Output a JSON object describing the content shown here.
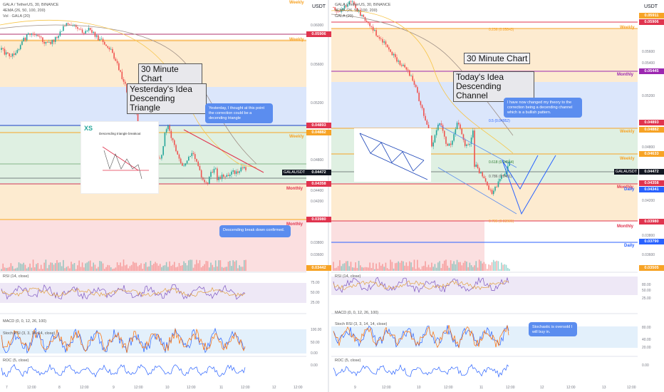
{
  "left_panel": {
    "header": {
      "symbol": "GALA / TetherUS, 30, BINANCE",
      "ema": "4EMA (26, 50, 100, 200)",
      "vol": "Vol · GALA (20)"
    },
    "currency": "USDT",
    "title_box": "30 Minute Chart",
    "idea_box": "Yesterday's Idea\nDescending Triangle",
    "note_1": "Yesterday, I thought at this point the correction could be a decending triangle",
    "note_2": "Descending break down confirmed.",
    "inset_logo": "XS",
    "inset_title": "Descending triangle breakout",
    "level_labels": [
      "Weekly",
      "Weekly",
      "Weekly",
      "Monthly",
      "Monthly"
    ],
    "price_tags": [
      {
        "text": "0.05906",
        "color": "#e0344e"
      },
      {
        "text": "0.04893",
        "color": "#e0344e"
      },
      {
        "text": "0.04882",
        "color": "#f7a325"
      },
      {
        "text": "0.04472",
        "color": "#131722"
      },
      {
        "text": "0.04358",
        "color": "#e0344e"
      },
      {
        "text": "0.03980",
        "color": "#e0344e"
      },
      {
        "text": "0.03442",
        "color": "#f7a325"
      }
    ],
    "ticker_tag": "GALAUSDT",
    "axis_prices": [
      "0.06000",
      "0.05600",
      "0.05200",
      "0.04800",
      "0.04400",
      "0.04200",
      "0.03800",
      "0.03600"
    ],
    "rsi": {
      "label": "RSI (14, close)",
      "ticks": [
        "75.00",
        "50.00",
        "25.00"
      ]
    },
    "macd": {
      "label": "MACD (0, 0, 12, 26, 100)",
      "stoch": "Stoch RSI (3, 3, 14, 14, close)",
      "ticks": [
        "100.00",
        "50.00",
        "0.00"
      ]
    },
    "roc": {
      "label": "ROC (5, close)",
      "ticks": [
        "0.00"
      ]
    },
    "x_axis": [
      "7",
      "12:00",
      "8",
      "12:00",
      "9",
      "12:00",
      "10",
      "12:00",
      "11",
      "12:00",
      "12",
      "12:00"
    ]
  },
  "right_panel": {
    "header": {
      "symbol": "GALA / TetherUS, 30, BINANCE",
      "ema": "4EMA (26, 50, 100, 200)",
      "vol": "GALA (20)"
    },
    "currency": "USDT",
    "title_box": "30 Minute Chart",
    "idea_box": "Today's Idea\nDescending Channel",
    "note_1": "I have now changed my theory to the correction being a decending channel which is a bullish pattern.",
    "note_2": "Stochastic is oversold I will buy in.",
    "fib_labels": [
      "0.236 (0.05843)",
      "0.5 (0.04952)",
      "0.618 (0.04554)",
      "0.786 (0.0401)",
      "0.786 (0.03981)"
    ],
    "level_labels": [
      "Weekly",
      "Monthly",
      "Weekly",
      "Weekly",
      "Monthly",
      "Daily",
      "Monthly",
      "Daily"
    ],
    "price_tags": [
      {
        "text": "0.05911",
        "color": "#f7a325"
      },
      {
        "text": "0.05906",
        "color": "#e0344e"
      },
      {
        "text": "0.05445",
        "color": "#9c27b0"
      },
      {
        "text": "0.04893",
        "color": "#e0344e"
      },
      {
        "text": "0.04882",
        "color": "#f7a325"
      },
      {
        "text": "0.04633",
        "color": "#f7a325"
      },
      {
        "text": "0.04472",
        "color": "#131722"
      },
      {
        "text": "0.04358",
        "color": "#e0344e"
      },
      {
        "text": "0.04341",
        "color": "#2962ff"
      },
      {
        "text": "0.03980",
        "color": "#e0344e"
      },
      {
        "text": "0.03790",
        "color": "#2962ff"
      },
      {
        "text": "0.03505",
        "color": "#f7a325"
      }
    ],
    "ticker_tag": "GALAUSDT",
    "axis_prices": [
      "0.05600",
      "0.05400",
      "0.05200",
      "0.04800",
      "0.04200",
      "0.03800",
      "0.03600"
    ],
    "rsi": {
      "label": "RSI (14, close)",
      "ticks": [
        "80.00",
        "50.00",
        "25.00"
      ]
    },
    "macd": {
      "label": "MACD (0, 0, 12, 26, 100)",
      "stoch": "Stoch RSI (3, 3, 14, 14, close)",
      "ticks": [
        "80.00",
        "40.00",
        "20.00"
      ]
    },
    "roc": {
      "label": "ROC (5, close)",
      "ticks": [
        "0.00"
      ]
    },
    "x_axis": [
      "9",
      "12:00",
      "10",
      "12:00",
      "11",
      "12:00",
      "12",
      "12:00",
      "13",
      "12:00"
    ]
  },
  "colors": {
    "bull": "#26a69a",
    "bear": "#ef5350",
    "orange_zone": "#fdebd0",
    "blue_zone": "#dbe6fb",
    "green_zone": "#dff0e2",
    "red_zone": "#fbdfe0",
    "note_blue": "#5b8def"
  }
}
